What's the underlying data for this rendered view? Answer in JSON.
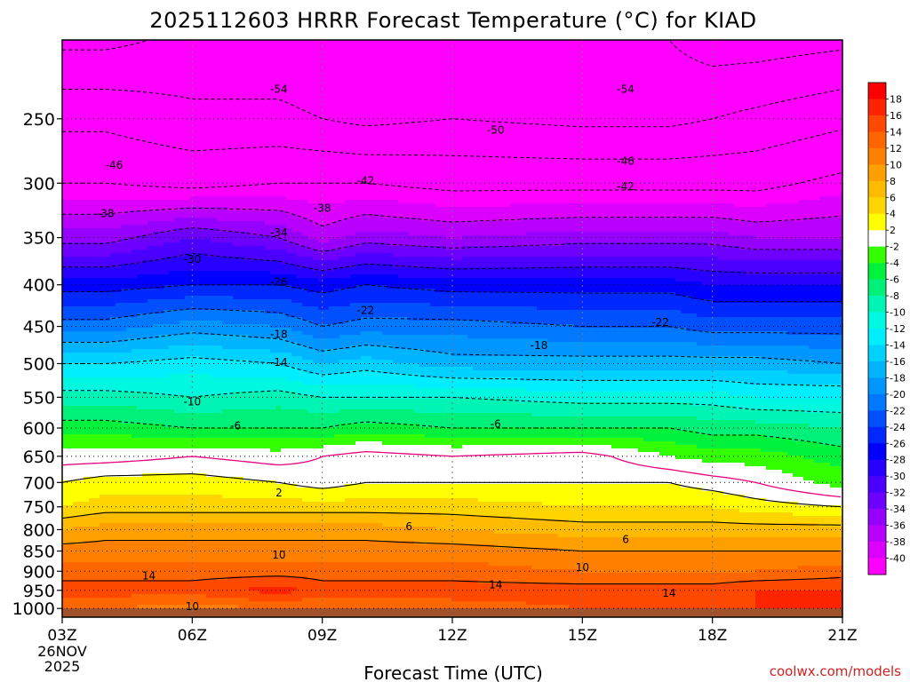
{
  "chart_data": {
    "type": "heatmap",
    "title": "2025112603 HRRR Forecast Temperature (°C) for KIAD",
    "xlabel": "Forecast Time (UTC)",
    "ylabel": "",
    "credit": "coolwx.com/models",
    "x_ticks": [
      {
        "hour": 3,
        "label": "03Z",
        "sub": [
          "26NOV",
          "2025"
        ]
      },
      {
        "hour": 6,
        "label": "06Z",
        "sub": []
      },
      {
        "hour": 9,
        "label": "09Z",
        "sub": []
      },
      {
        "hour": 12,
        "label": "12Z",
        "sub": []
      },
      {
        "hour": 15,
        "label": "15Z",
        "sub": []
      },
      {
        "hour": 18,
        "label": "18Z",
        "sub": []
      },
      {
        "hour": 21,
        "label": "21Z",
        "sub": []
      }
    ],
    "xlim": [
      3,
      21
    ],
    "y_scale": "log-pressure",
    "ylim": [
      1025,
      200
    ],
    "y_ticks": [
      250,
      300,
      350,
      400,
      450,
      500,
      550,
      600,
      650,
      700,
      750,
      800,
      850,
      900,
      950,
      1000
    ],
    "levels": [
      200,
      250,
      300,
      350,
      400,
      450,
      500,
      550,
      600,
      650,
      700,
      750,
      800,
      850,
      900,
      950,
      1000
    ],
    "surface_pressure": 1000,
    "colorbar": {
      "labels": [
        18,
        16,
        14,
        12,
        10,
        8,
        6,
        4,
        2,
        -2,
        -4,
        -6,
        -8,
        -10,
        -12,
        -14,
        -16,
        -18,
        -20,
        -22,
        -24,
        -26,
        -28,
        -30,
        -32,
        -34,
        -36,
        -38,
        -40
      ],
      "bins": [
        {
          "min": 18,
          "max": 99,
          "color": "#ff0000"
        },
        {
          "min": 16,
          "max": 18,
          "color": "#ff2400"
        },
        {
          "min": 14,
          "max": 16,
          "color": "#ff4800"
        },
        {
          "min": 12,
          "max": 14,
          "color": "#ff6600"
        },
        {
          "min": 10,
          "max": 12,
          "color": "#ff8000"
        },
        {
          "min": 8,
          "max": 10,
          "color": "#ff9f00"
        },
        {
          "min": 6,
          "max": 8,
          "color": "#ffbb00"
        },
        {
          "min": 4,
          "max": 6,
          "color": "#ffd500"
        },
        {
          "min": 2,
          "max": 4,
          "color": "#ffff00"
        },
        {
          "min": -2,
          "max": 2,
          "color": "#ffffff"
        },
        {
          "min": -4,
          "max": -2,
          "color": "#33ff00"
        },
        {
          "min": -6,
          "max": -4,
          "color": "#00f23c"
        },
        {
          "min": -8,
          "max": -6,
          "color": "#00f07a"
        },
        {
          "min": -10,
          "max": -8,
          "color": "#00f4b4"
        },
        {
          "min": -12,
          "max": -10,
          "color": "#00f7e0"
        },
        {
          "min": -14,
          "max": -12,
          "color": "#00eeff"
        },
        {
          "min": -16,
          "max": -14,
          "color": "#00d2ff"
        },
        {
          "min": -18,
          "max": -16,
          "color": "#00b4ff"
        },
        {
          "min": -20,
          "max": -18,
          "color": "#0096ff"
        },
        {
          "min": -22,
          "max": -20,
          "color": "#0078ff"
        },
        {
          "min": -24,
          "max": -22,
          "color": "#0050ff"
        },
        {
          "min": -26,
          "max": -24,
          "color": "#0028ff"
        },
        {
          "min": -28,
          "max": -26,
          "color": "#0000ff"
        },
        {
          "min": -30,
          "max": -28,
          "color": "#2800ff"
        },
        {
          "min": -32,
          "max": -30,
          "color": "#4b00ff"
        },
        {
          "min": -34,
          "max": -32,
          "color": "#6e00ff"
        },
        {
          "min": -36,
          "max": -34,
          "color": "#9600ff"
        },
        {
          "min": -38,
          "max": -36,
          "color": "#b900ff"
        },
        {
          "min": -40,
          "max": -38,
          "color": "#dc00ff"
        },
        {
          "min": -99,
          "max": -40,
          "color": "#ff00ff"
        }
      ]
    },
    "ground_color": "#a0522d",
    "zero_isotherm_color": "#e6007e",
    "profiles": [
      {
        "hour": 3,
        "temps": [
          -55,
          -47,
          -42,
          -35,
          -27,
          -21,
          -14,
          -9,
          -5,
          -1,
          2,
          4,
          8,
          11,
          13,
          15,
          12
        ]
      },
      {
        "hour": 4,
        "temps": [
          -55,
          -47,
          -42,
          -35,
          -27,
          -21,
          -14,
          -9,
          -5,
          -1,
          3,
          5,
          9,
          11,
          13,
          15,
          12
        ]
      },
      {
        "hour": 6,
        "temps": [
          -53,
          -49,
          -43,
          -32,
          -26,
          -19,
          -13,
          -10,
          -6,
          0,
          3,
          5,
          9,
          11,
          13,
          15,
          11
        ]
      },
      {
        "hour": 8,
        "temps": [
          -53,
          -49,
          -42,
          -34,
          -26,
          -20,
          -14,
          -9,
          -6,
          -1,
          2,
          5,
          9,
          11,
          13,
          17,
          12
        ]
      },
      {
        "hour": 9,
        "temps": [
          -54,
          -50,
          -42,
          -37,
          -27,
          -22,
          -16,
          -10,
          -6,
          0,
          1,
          5,
          9,
          11,
          13,
          15,
          12
        ]
      },
      {
        "hour": 10,
        "temps": [
          -54,
          -51,
          -42,
          -35,
          -26,
          -21,
          -15,
          -10,
          -5,
          1,
          2,
          5,
          9,
          11,
          13,
          15,
          13
        ]
      },
      {
        "hour": 12,
        "temps": [
          -54,
          -50,
          -43,
          -36,
          -27,
          -21,
          -17,
          -10,
          -6,
          0,
          2,
          5,
          8,
          11,
          13,
          15,
          13
        ]
      },
      {
        "hour": 15,
        "temps": [
          -53,
          -51,
          -43,
          -35,
          -27,
          -22,
          -17,
          -11,
          -6,
          1,
          2,
          4,
          7,
          10,
          12,
          15,
          14
        ]
      },
      {
        "hour": 17,
        "temps": [
          -54,
          -51,
          -43,
          -35,
          -27,
          -22,
          -17,
          -11,
          -6,
          -2,
          2,
          4,
          7,
          10,
          12,
          15,
          14
        ]
      },
      {
        "hour": 18,
        "temps": [
          -56,
          -50,
          -43,
          -35,
          -28,
          -23,
          -17,
          -11,
          -7,
          -3,
          1,
          4,
          7,
          10,
          12,
          15,
          15
        ]
      },
      {
        "hour": 19,
        "temps": [
          -56,
          -49,
          -43,
          -36,
          -28,
          -23,
          -17,
          -12,
          -7,
          -3,
          0,
          3,
          7,
          10,
          12,
          16,
          16
        ]
      },
      {
        "hour": 21,
        "temps": [
          -55,
          -47,
          -41,
          -36,
          -28,
          -23,
          -18,
          -12,
          -8,
          -5,
          -3,
          2,
          7,
          10,
          13,
          16,
          17
        ]
      }
    ],
    "contour_labels": [
      {
        "value": "-54",
        "hour": 8.0,
        "pressure": 230
      },
      {
        "value": "-54",
        "hour": 16.0,
        "pressure": 230
      },
      {
        "value": "-50",
        "hour": 13.0,
        "pressure": 258
      },
      {
        "value": "-46",
        "hour": 4.2,
        "pressure": 285
      },
      {
        "value": "-46",
        "hour": 16.0,
        "pressure": 282
      },
      {
        "value": "-42",
        "hour": 10.0,
        "pressure": 298
      },
      {
        "value": "-42",
        "hour": 16.0,
        "pressure": 303
      },
      {
        "value": "-38",
        "hour": 4.0,
        "pressure": 327
      },
      {
        "value": "-38",
        "hour": 9.0,
        "pressure": 322
      },
      {
        "value": "-34",
        "hour": 8.0,
        "pressure": 345
      },
      {
        "value": "-30",
        "hour": 6.0,
        "pressure": 372
      },
      {
        "value": "-26",
        "hour": 8.0,
        "pressure": 397
      },
      {
        "value": "-22",
        "hour": 10.0,
        "pressure": 430
      },
      {
        "value": "-22",
        "hour": 16.8,
        "pressure": 445
      },
      {
        "value": "-18",
        "hour": 8.0,
        "pressure": 460
      },
      {
        "value": "-18",
        "hour": 14.0,
        "pressure": 475
      },
      {
        "value": "-14",
        "hour": 8.0,
        "pressure": 498
      },
      {
        "value": "-10",
        "hour": 6.0,
        "pressure": 557
      },
      {
        "value": "-6",
        "hour": 7.0,
        "pressure": 596
      },
      {
        "value": "-6",
        "hour": 13.0,
        "pressure": 593
      },
      {
        "value": "2",
        "hour": 8.0,
        "pressure": 721
      },
      {
        "value": "6",
        "hour": 11.0,
        "pressure": 793
      },
      {
        "value": "6",
        "hour": 16.0,
        "pressure": 823
      },
      {
        "value": "10",
        "hour": 8.0,
        "pressure": 860
      },
      {
        "value": "10",
        "hour": 15.0,
        "pressure": 890
      },
      {
        "value": "14",
        "hour": 5.0,
        "pressure": 912
      },
      {
        "value": "14",
        "hour": 13.0,
        "pressure": 935
      },
      {
        "value": "14",
        "hour": 17.0,
        "pressure": 958
      },
      {
        "value": "10",
        "hour": 6.0,
        "pressure": 995
      }
    ]
  }
}
